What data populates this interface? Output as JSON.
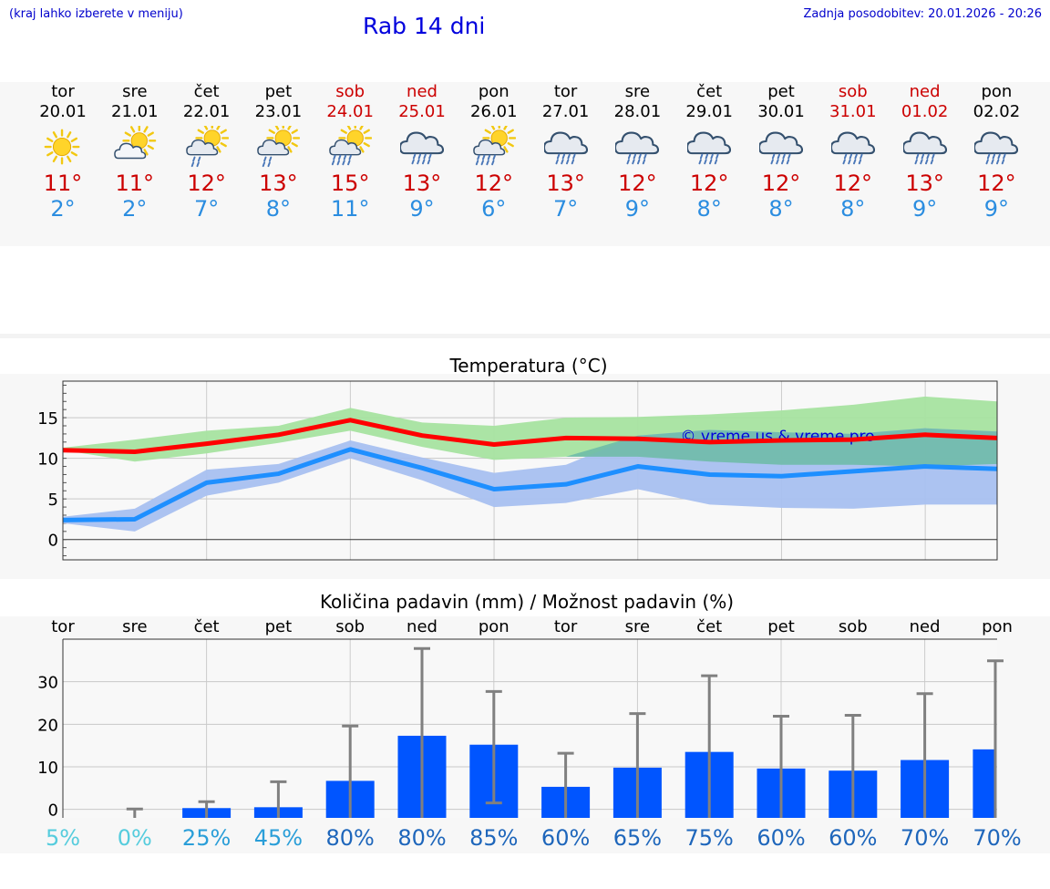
{
  "header": {
    "hint": "(kraj lahko izberete v meniju)",
    "title": "Rab 14 dni",
    "updated_label": "Zadnja posodobitev:",
    "updated_value": "20.01.2026 - 20:26"
  },
  "days": [
    {
      "name": "tor",
      "date": "20.01",
      "icon": "sun-icon",
      "tmax": "11°",
      "tmin": "2°",
      "weekend": false
    },
    {
      "name": "sre",
      "date": "21.01",
      "icon": "sun-cloud-icon",
      "tmax": "11°",
      "tmin": "2°",
      "weekend": false
    },
    {
      "name": "čet",
      "date": "22.01",
      "icon": "sun-cloud-rain-icon",
      "tmax": "12°",
      "tmin": "7°",
      "weekend": false
    },
    {
      "name": "pet",
      "date": "23.01",
      "icon": "sun-cloud-rain-icon",
      "tmax": "13°",
      "tmin": "8°",
      "weekend": false
    },
    {
      "name": "sob",
      "date": "24.01",
      "icon": "sun-cloud-heavy-rain-icon",
      "tmax": "15°",
      "tmin": "11°",
      "weekend": true
    },
    {
      "name": "ned",
      "date": "25.01",
      "icon": "cloud-rain-icon",
      "tmax": "13°",
      "tmin": "9°",
      "weekend": true
    },
    {
      "name": "pon",
      "date": "26.01",
      "icon": "sun-cloud-heavy-rain-icon",
      "tmax": "12°",
      "tmin": "6°",
      "weekend": false
    },
    {
      "name": "tor",
      "date": "27.01",
      "icon": "cloud-rain-icon",
      "tmax": "13°",
      "tmin": "7°",
      "weekend": false
    },
    {
      "name": "sre",
      "date": "28.01",
      "icon": "cloud-rain-icon",
      "tmax": "12°",
      "tmin": "9°",
      "weekend": false
    },
    {
      "name": "čet",
      "date": "29.01",
      "icon": "cloud-rain-icon",
      "tmax": "12°",
      "tmin": "8°",
      "weekend": false
    },
    {
      "name": "pet",
      "date": "30.01",
      "icon": "cloud-rain-icon",
      "tmax": "12°",
      "tmin": "8°",
      "weekend": false
    },
    {
      "name": "sob",
      "date": "31.01",
      "icon": "cloud-rain-icon",
      "tmax": "12°",
      "tmin": "8°",
      "weekend": true
    },
    {
      "name": "ned",
      "date": "01.02",
      "icon": "cloud-rain-icon",
      "tmax": "13°",
      "tmin": "9°",
      "weekend": true
    },
    {
      "name": "pon",
      "date": "02.02",
      "icon": "cloud-rain-icon",
      "tmax": "12°",
      "tmin": "9°",
      "weekend": false
    }
  ],
  "colors": {
    "max_line": "#ff0000",
    "max_band": "#a6e3a0",
    "min_line": "#1e8fff",
    "min_band": "#a8c0f0",
    "overlap_band": "#6fbba8",
    "bar": "#0055ff",
    "errorbar": "#808080",
    "text_blue": "#0000dd"
  },
  "chart_data": [
    {
      "type": "line",
      "title": "Temperatura (°C)",
      "watermark": "© vreme.us & vreme.pro",
      "ylim": [
        -2.5,
        19.5
      ],
      "yticks": [
        0,
        5,
        10,
        15
      ],
      "x": [
        0,
        1,
        2,
        3,
        4,
        5,
        6,
        7,
        8,
        9,
        10,
        11,
        12,
        13
      ],
      "series": [
        {
          "name": "max",
          "values": [
            11,
            10.8,
            11.8,
            12.9,
            14.7,
            12.8,
            11.7,
            12.5,
            12.4,
            12,
            12.2,
            12.3,
            12.9,
            12.5
          ],
          "band_low": [
            11,
            9.6,
            10.6,
            11.9,
            13.4,
            11.4,
            9.8,
            10.2,
            10.2,
            9.6,
            9.2,
            9.2,
            9,
            9.3
          ],
          "band_high": [
            11.3,
            12.3,
            13.4,
            14,
            16.2,
            14.4,
            14,
            15,
            15.1,
            15.4,
            15.9,
            16.6,
            17.6,
            17
          ]
        },
        {
          "name": "min",
          "values": [
            2.4,
            2.5,
            7,
            8.1,
            11.1,
            8.8,
            6.2,
            6.8,
            9,
            8,
            7.8,
            8.4,
            9,
            8.7
          ],
          "band_low": [
            2,
            1,
            5.4,
            7,
            10,
            7.3,
            4,
            4.5,
            6.2,
            4.3,
            3.9,
            3.8,
            4.3,
            4.3
          ],
          "band_high": [
            2.8,
            3.8,
            8.6,
            9.3,
            12.2,
            10.1,
            8.2,
            9.2,
            12.8,
            13.5,
            13.2,
            13,
            13.7,
            13.3
          ]
        }
      ]
    },
    {
      "type": "bar",
      "title": "Količina padavin (mm) / Možnost padavin (%)",
      "categories": [
        "tor",
        "sre",
        "čet",
        "pet",
        "sob",
        "ned",
        "pon",
        "tor",
        "sre",
        "čet",
        "pet",
        "sob",
        "ned",
        "pon"
      ],
      "values": [
        0,
        0,
        0.3,
        0.5,
        6.7,
        17.3,
        15.2,
        5.3,
        9.8,
        13.5,
        9.6,
        9.1,
        11.6,
        14.1
      ],
      "err_low": [
        0,
        0,
        0,
        0,
        0,
        0,
        1.5,
        0,
        0,
        0,
        0,
        0,
        0,
        0
      ],
      "err_high": [
        0,
        0.1,
        1.8,
        6.5,
        19.6,
        37.8,
        27.7,
        13.2,
        22.5,
        31.4,
        21.9,
        22.1,
        27.2,
        34.9
      ],
      "probability": [
        "5%",
        "0%",
        "25%",
        "45%",
        "80%",
        "80%",
        "85%",
        "60%",
        "65%",
        "75%",
        "60%",
        "60%",
        "70%",
        "70%"
      ],
      "prob_colors": [
        "#55ccdd",
        "#55ccdd",
        "#2a9ed8",
        "#2a9ed8",
        "#1e66bb",
        "#1e66bb",
        "#1e66bb",
        "#1e66bb",
        "#1e66bb",
        "#1e66bb",
        "#1e66bb",
        "#1e66bb",
        "#1e66bb",
        "#1e66bb"
      ],
      "ylim": [
        -2,
        40
      ],
      "yticks": [
        0,
        10,
        20,
        30
      ]
    }
  ]
}
